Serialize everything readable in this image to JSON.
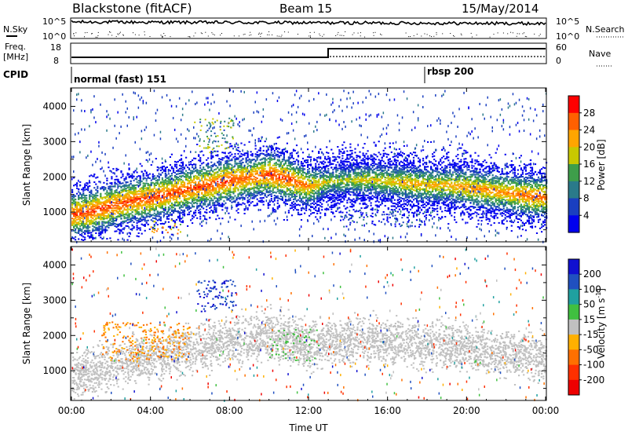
{
  "header": {
    "radar": "Blackstone (fitACF)",
    "beam": "Beam 15",
    "date": "15/May/2014"
  },
  "panels": {
    "noise": {
      "left_label": "N.Sky",
      "right_label": "N.Search",
      "left_ticks": [
        "10^5",
        "10^0"
      ],
      "right_ticks": [
        "10^5",
        "10^0"
      ]
    },
    "freq": {
      "left_label_1": "Freq.",
      "left_label_2": "[MHz]",
      "right_label": "Nave",
      "left_ticks": [
        "18",
        "8"
      ],
      "right_ticks": [
        "60",
        "0"
      ]
    },
    "cpid": {
      "label": "CPID",
      "modes": [
        {
          "name": "normal (fast) 151",
          "start_hour": 0
        },
        {
          "name": "rbsp 200",
          "start_hour": 18.1
        }
      ]
    }
  },
  "chart_data": [
    {
      "type": "heatmap",
      "name": "power",
      "ylabel": "Slant Range [km]",
      "xlabel": "",
      "x_ticks": [
        "00:00",
        "04:00",
        "08:00",
        "12:00",
        "16:00",
        "20:00",
        "00:00"
      ],
      "y_ticks": [
        1000,
        2000,
        3000,
        4000
      ],
      "xlim": [
        0,
        24
      ],
      "ylim": [
        180,
        4500
      ],
      "colorbar": {
        "label": "Power [dB]",
        "ticks": [
          4,
          8,
          12,
          16,
          20,
          24,
          28
        ],
        "colors": [
          "#0000ee",
          "#1a3fc0",
          "#2a7a8a",
          "#3e9e4a",
          "#c8c800",
          "#ffa500",
          "#ff6000",
          "#ff0000"
        ]
      },
      "echo_band": {
        "hours": [
          0,
          1,
          2,
          3,
          4,
          5,
          6,
          7,
          8,
          9,
          10,
          11,
          12,
          13,
          14,
          15,
          16,
          17,
          18,
          19,
          20,
          21,
          22,
          23,
          24
        ],
        "center_km": [
          900,
          1000,
          1150,
          1300,
          1380,
          1500,
          1650,
          1750,
          1880,
          1950,
          2050,
          1900,
          1700,
          1850,
          1880,
          1900,
          1850,
          1800,
          1750,
          1750,
          1680,
          1600,
          1520,
          1450,
          1400
        ],
        "peak_db": [
          28,
          28,
          28,
          28,
          28,
          28,
          28,
          28,
          28,
          26,
          28,
          28,
          24,
          18,
          18,
          20,
          20,
          22,
          22,
          22,
          24,
          24,
          24,
          26,
          26
        ]
      },
      "features": [
        {
          "hour_start": 6.2,
          "hour_end": 8.2,
          "range_start_km": 2700,
          "range_end_km": 3700,
          "peak_db": 20
        },
        {
          "hour_start": 4.0,
          "hour_end": 5.5,
          "range_start_km": 400,
          "range_end_km": 800,
          "peak_db": 28
        },
        {
          "hour_start": 13.5,
          "hour_end": 18.0,
          "range_start_km": 600,
          "range_end_km": 1100,
          "peak_db": 12
        }
      ]
    },
    {
      "type": "heatmap",
      "name": "velocity",
      "ylabel": "Slant Range [km]",
      "xlabel": "Time UT",
      "x_ticks": [
        "00:00",
        "04:00",
        "08:00",
        "12:00",
        "16:00",
        "20:00",
        "00:00"
      ],
      "y_ticks": [
        1000,
        2000,
        3000,
        4000
      ],
      "xlim": [
        0,
        24
      ],
      "ylim": [
        180,
        4500
      ],
      "colorbar": {
        "label": "Velocity [m s",
        "label_exponent": "-1",
        "label_close": "]",
        "ticks": [
          200,
          100,
          50,
          15,
          -15,
          -50,
          -100,
          -200
        ],
        "colors": [
          "#1010d0",
          "#2050c0",
          "#20a0a0",
          "#40c040",
          "#c0c0c0",
          "#ffb000",
          "#ff7000",
          "#ff3000",
          "#ee0000"
        ]
      },
      "features": [
        {
          "label": "ground scatter",
          "velocity": 0,
          "hour_start": 0,
          "hour_end": 24,
          "range_start_km": 700,
          "range_end_km": 2200
        },
        {
          "label": "positive",
          "velocity": 200,
          "hour_start": 6.3,
          "hour_end": 8.3,
          "range_start_km": 2700,
          "range_end_km": 3600
        },
        {
          "label": "moderate positive",
          "velocity": 15,
          "hour_start": 10.0,
          "hour_end": 12.5,
          "range_start_km": 1300,
          "range_end_km": 2200
        },
        {
          "label": "negative",
          "velocity": -50,
          "hour_start": 1.5,
          "hour_end": 6.0,
          "range_start_km": 1300,
          "range_end_km": 2400
        }
      ]
    }
  ],
  "colors": {
    "background": "#ffffff",
    "axis": "#000000"
  }
}
